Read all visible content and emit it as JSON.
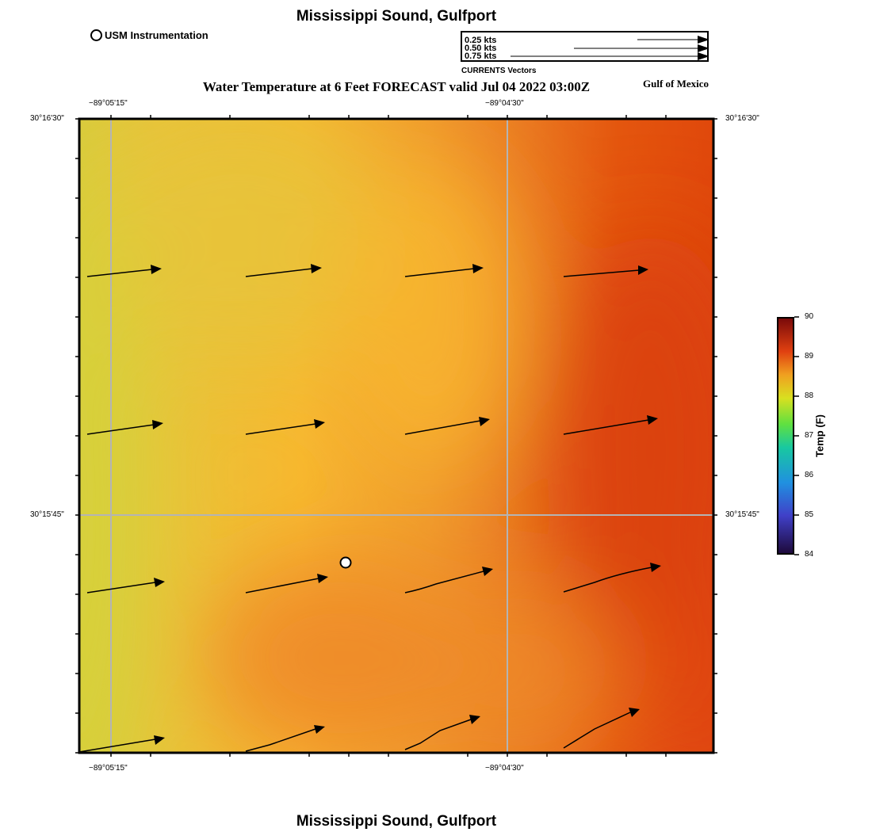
{
  "header": {
    "title": "Mississippi Sound, Gulfport",
    "subtitle": "Water Temperature at 6 Feet FORECAST valid Jul 04 2022 03:00Z",
    "region": "Gulf of Mexico",
    "instrument_legend": "USM Instrumentation"
  },
  "vector_legend": {
    "title": "CURRENTS Vectors",
    "entries": [
      {
        "label": "0.25 kts",
        "speed_kts": 0.25
      },
      {
        "label": "0.50 kts",
        "speed_kts": 0.5
      },
      {
        "label": "0.75 kts",
        "speed_kts": 0.75
      }
    ]
  },
  "axes": {
    "lon_ticks": [
      "−89°05'15\"",
      "−89°04'30\""
    ],
    "lat_ticks": [
      "30°16'30\"",
      "30°15'45\""
    ]
  },
  "colorbar": {
    "title": "Temp (F)",
    "ticks": [
      "84",
      "85",
      "86",
      "87",
      "88",
      "89",
      "90"
    ],
    "min": 84,
    "max": 90
  },
  "colors": {
    "yellow_green": "#d6d23a",
    "yellow": "#f7b830",
    "orange": "#ee8a28",
    "red_orange": "#e0460c",
    "grid": "#b4b4b4"
  },
  "footer": {
    "title": "Mississippi Sound, Gulfport"
  }
}
